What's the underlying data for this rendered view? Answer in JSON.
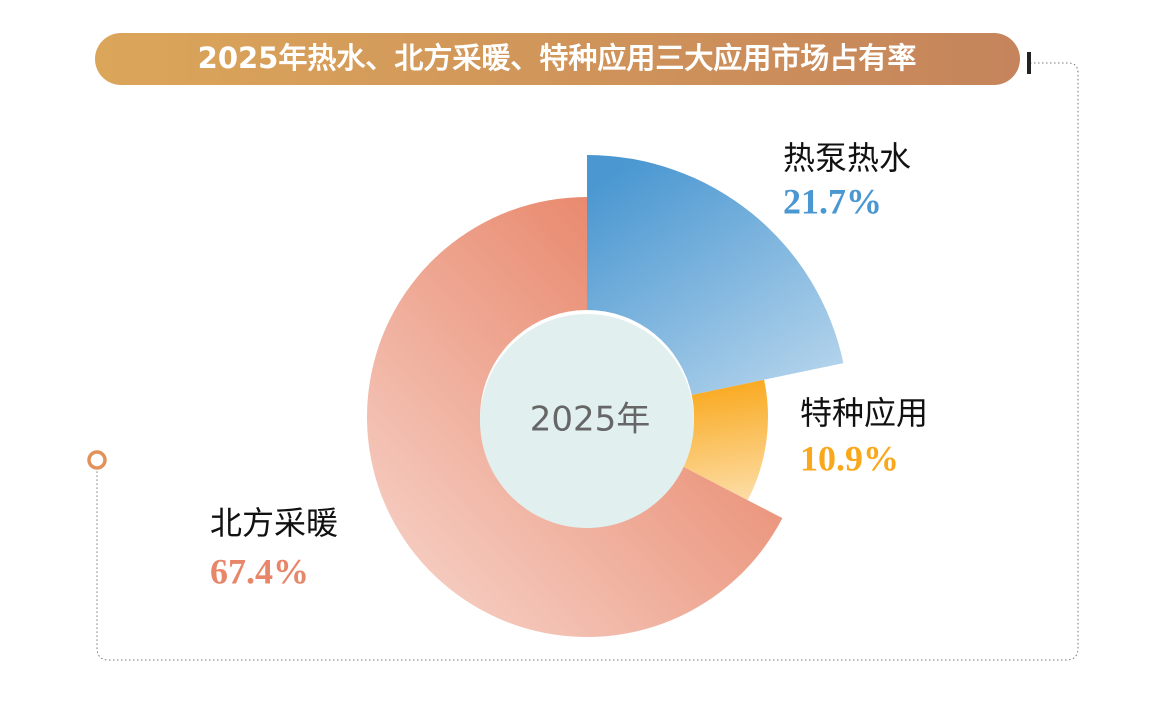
{
  "chart_data": {
    "type": "donut",
    "title": "2025年热水、北方采暖、特种应用三大应用市场占有率",
    "center_label": "2025年",
    "categories": [
      "热泵热水",
      "特种应用",
      "北方采暖"
    ],
    "values": [
      21.7,
      10.9,
      67.4
    ],
    "value_labels": [
      "21.7%",
      "10.9%",
      "67.4%"
    ],
    "colors": [
      "#4a97d1",
      "#f9a81c",
      "#e8866a"
    ]
  }
}
